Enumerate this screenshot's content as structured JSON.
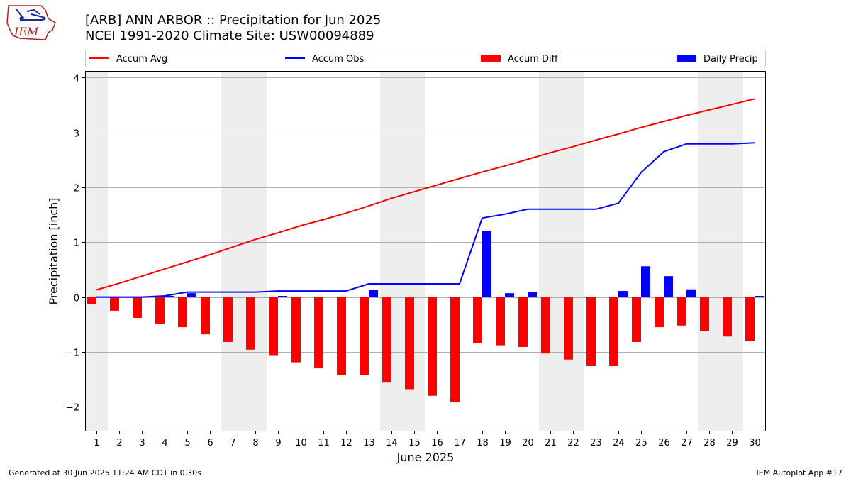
{
  "header": {
    "title": "[ARB] ANN ARBOR :: Precipitation for Jun 2025",
    "subtitle": "NCEI 1991-2020 Climate Site: USW00094889"
  },
  "logo": {
    "text": "IEM"
  },
  "footer": {
    "left": "Generated at 30 Jun 2025 11:24 AM CDT in 0.30s",
    "right": "IEM Autoplot App #17"
  },
  "colors": {
    "accum_avg": "#ff0000",
    "accum_obs": "#0000ff",
    "accum_diff": "#ff0000",
    "daily_precip": "#0000ff",
    "weekend_shade": "#eeeeee"
  },
  "chart_data": {
    "type": "bar",
    "xlabel": "June 2025",
    "ylabel": "Precipitation [inch]",
    "ylim": [
      -2.45,
      4.12
    ],
    "yticks": [
      4,
      3,
      2,
      1,
      0,
      -1,
      -2
    ],
    "ytick_labels": [
      "4",
      "3",
      "2",
      "1",
      "0",
      "−1",
      "−2"
    ],
    "grid": true,
    "legend_position": "top",
    "days": [
      1,
      2,
      3,
      4,
      5,
      6,
      7,
      8,
      9,
      10,
      11,
      12,
      13,
      14,
      15,
      16,
      17,
      18,
      19,
      20,
      21,
      22,
      23,
      24,
      25,
      26,
      27,
      28,
      29,
      30
    ],
    "day_labels": [
      "1",
      "2",
      "3",
      "4",
      "5",
      "6",
      "7",
      "8",
      "9",
      "10",
      "11",
      "12",
      "13",
      "14",
      "15",
      "16",
      "17",
      "18",
      "19",
      "20",
      "21",
      "22",
      "23",
      "24",
      "25",
      "26",
      "27",
      "28",
      "29",
      "30"
    ],
    "weekend_days": [
      1,
      7,
      8,
      14,
      15,
      21,
      22,
      28,
      29
    ],
    "series": [
      {
        "name": "Accum Avg",
        "kind": "line",
        "values": [
          0.13,
          0.25,
          0.38,
          0.51,
          0.64,
          0.77,
          0.91,
          1.05,
          1.17,
          1.3,
          1.41,
          1.53,
          1.66,
          1.8,
          1.92,
          2.04,
          2.16,
          2.28,
          2.39,
          2.51,
          2.63,
          2.74,
          2.86,
          2.97,
          3.09,
          3.2,
          3.31,
          3.41,
          3.51,
          3.61
        ]
      },
      {
        "name": "Accum Obs",
        "kind": "line",
        "values": [
          0.0,
          0.0,
          0.0,
          0.02,
          0.09,
          0.09,
          0.09,
          0.09,
          0.11,
          0.11,
          0.11,
          0.11,
          0.24,
          0.24,
          0.24,
          0.24,
          0.24,
          1.44,
          1.51,
          1.6,
          1.6,
          1.6,
          1.6,
          1.71,
          2.27,
          2.65,
          2.79,
          2.79,
          2.79,
          2.81
        ]
      },
      {
        "name": "Accum Diff",
        "kind": "bar",
        "values": [
          -0.13,
          -0.25,
          -0.38,
          -0.49,
          -0.55,
          -0.68,
          -0.82,
          -0.96,
          -1.06,
          -1.19,
          -1.3,
          -1.42,
          -1.42,
          -1.56,
          -1.68,
          -1.8,
          -1.92,
          -0.84,
          -0.88,
          -0.91,
          -1.03,
          -1.14,
          -1.26,
          -1.26,
          -0.82,
          -0.55,
          -0.52,
          -0.62,
          -0.72,
          -0.8
        ]
      },
      {
        "name": "Daily Precip",
        "kind": "bar",
        "values": [
          0,
          0,
          0,
          0.02,
          0.07,
          0,
          0,
          0,
          0.02,
          0,
          0,
          0,
          0.13,
          0,
          0,
          0,
          0,
          1.2,
          0.07,
          0.09,
          0,
          0,
          0,
          0.11,
          0.56,
          0.38,
          0.14,
          0,
          0,
          0.02
        ]
      }
    ]
  }
}
